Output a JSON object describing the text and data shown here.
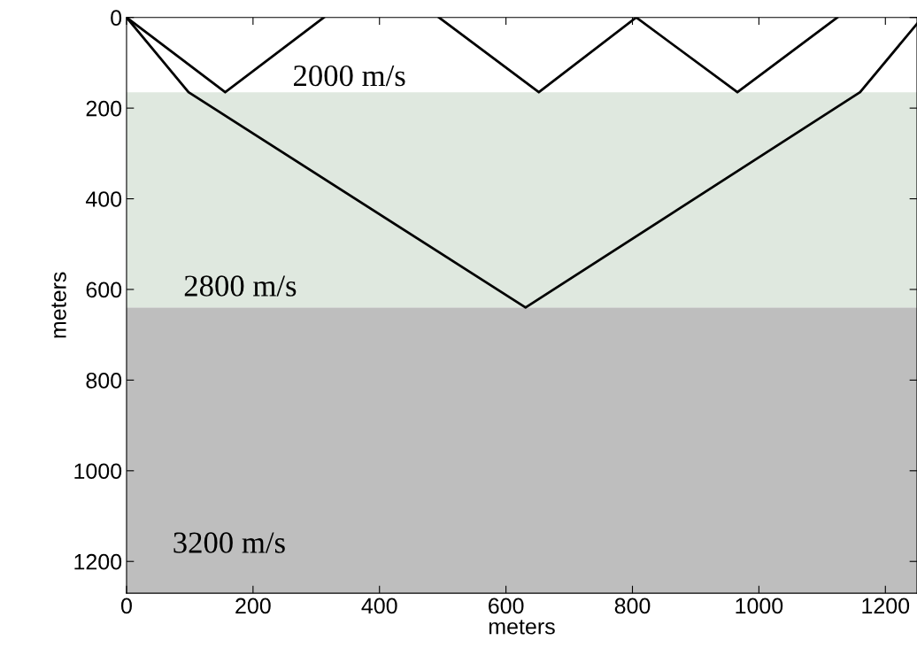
{
  "chart_data": {
    "type": "line",
    "xlabel": "meters",
    "ylabel": "meters",
    "xlim": [
      0,
      1250
    ],
    "ylim": [
      1270,
      0
    ],
    "xticks": [
      0,
      200,
      400,
      600,
      800,
      1000,
      1200
    ],
    "yticks": [
      0,
      200,
      400,
      600,
      800,
      1000,
      1200
    ],
    "grid": false,
    "marker": "none",
    "line_style": "solid",
    "series": [
      {
        "color": "#000000",
        "x": [
          0,
          156,
          312
        ],
        "values": [
          0,
          165,
          0
        ]
      },
      {
        "color": "#000000",
        "x": [
          494,
          652,
          806,
          966,
          1124
        ],
        "values": [
          0,
          165,
          0,
          165,
          0
        ]
      },
      {
        "color": "#000000",
        "x": [
          0,
          98,
          631,
          1160,
          1250
        ],
        "values": [
          0,
          165,
          640,
          165,
          14
        ]
      }
    ],
    "bands": [
      {
        "axis": "y",
        "from": 165,
        "to": 640,
        "color": "#dfe8df"
      },
      {
        "axis": "y",
        "from": 640,
        "to": 1270,
        "color": "#bebebe"
      }
    ],
    "annotations": [
      "2000 m/s",
      "2800 m/s",
      "3200 m/s"
    ]
  }
}
